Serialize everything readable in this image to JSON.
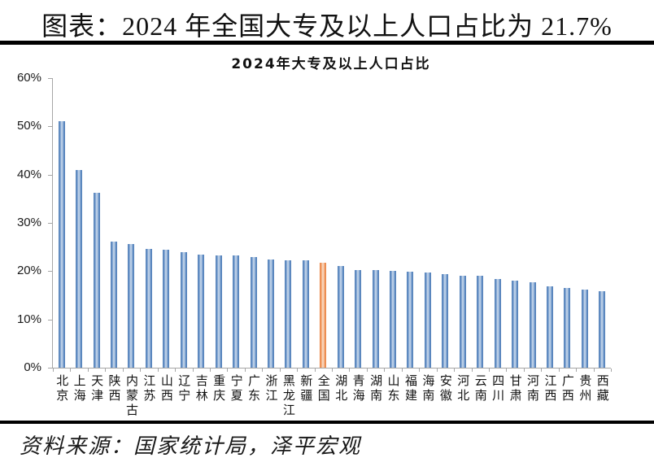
{
  "header": {
    "title": "图表：2024 年全国大专及以上人口占比为 21.7%"
  },
  "source": {
    "text": "资料来源：国家统计局，泽平宏观"
  },
  "chart_data": {
    "type": "bar",
    "title": "2024年大专及以上人口占比",
    "categories": [
      "北京",
      "上海",
      "天津",
      "陕西",
      "内蒙古",
      "江苏",
      "山西",
      "辽宁",
      "吉林",
      "重庆",
      "宁夏",
      "广东",
      "浙江",
      "黑龙江",
      "新疆",
      "全国",
      "湖北",
      "青海",
      "湖南",
      "山东",
      "福建",
      "海南",
      "安徽",
      "河北",
      "云南",
      "四川",
      "甘肃",
      "河南",
      "江西",
      "广西",
      "贵州",
      "西藏"
    ],
    "values": [
      51.0,
      41.0,
      36.2,
      26.2,
      25.6,
      24.6,
      24.4,
      24.0,
      23.5,
      23.3,
      23.3,
      22.9,
      22.4,
      22.3,
      22.2,
      21.7,
      21.1,
      20.3,
      20.2,
      20.1,
      19.9,
      19.8,
      19.4,
      19.1,
      19.0,
      18.4,
      18.0,
      17.7,
      16.9,
      16.6,
      16.2,
      15.9
    ],
    "unit": "%",
    "highlight_category": "全国",
    "highlight_value": 21.7,
    "xlabel": "",
    "ylabel": "",
    "ylim": [
      0,
      60
    ],
    "ytick_values": [
      0,
      10,
      20,
      30,
      40,
      50,
      60
    ],
    "ytick_labels": [
      "0%",
      "10%",
      "20%",
      "30%",
      "40%",
      "50%",
      "60%"
    ],
    "grid": false,
    "legend": "none",
    "axis_color": "#a6a6a6",
    "bar_color": "#4f81bd",
    "highlight_color": "#ed7d31",
    "bar_gradient": [
      "#4878b4",
      "#7ba0cf",
      "#d3e0ef",
      "#7ba0cf",
      "#4878b4"
    ],
    "highlight_gradient": [
      "#e87d3c",
      "#f2a977",
      "#fbe3d2",
      "#f2a977",
      "#e87d3c"
    ]
  }
}
